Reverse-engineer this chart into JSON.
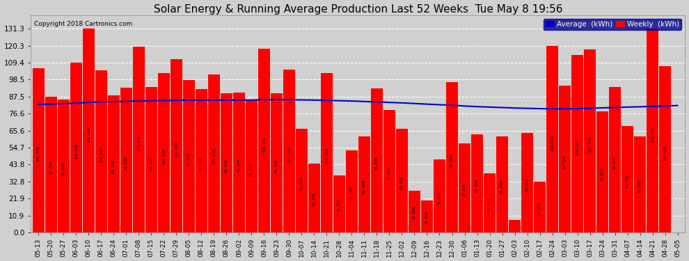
{
  "title": "Solar Energy & Running Average Production Last 52 Weeks  Tue May 8 19:56",
  "copyright": "Copyright 2018 Cartronics.com",
  "background_color": "#d0d0d0",
  "bar_color": "#ff0000",
  "line_color": "#0000cc",
  "yticks": [
    0.0,
    10.9,
    21.9,
    32.8,
    43.8,
    54.7,
    65.6,
    76.6,
    87.5,
    98.5,
    109.4,
    120.3,
    131.3
  ],
  "ylim": [
    0,
    140
  ],
  "categories": [
    "05-13",
    "05-20",
    "05-27",
    "06-03",
    "06-10",
    "06-17",
    "06-24",
    "07-01",
    "07-08",
    "07-15",
    "07-22",
    "07-29",
    "08-05",
    "08-12",
    "08-19",
    "08-26",
    "09-02",
    "09-09",
    "09-16",
    "09-23",
    "09-30",
    "10-07",
    "10-14",
    "10-21",
    "10-28",
    "11-04",
    "11-11",
    "11-18",
    "11-25",
    "12-02",
    "12-09",
    "12-16",
    "12-23",
    "12-30",
    "01-06",
    "01-13",
    "01-20",
    "01-27",
    "02-03",
    "02-10",
    "02-17",
    "02-24",
    "03-03",
    "03-10",
    "03-17",
    "03-24",
    "03-31",
    "04-07",
    "04-14",
    "04-21",
    "04-28",
    "05-05"
  ],
  "bar_heights": [
    105.776,
    87.348,
    85.548,
    109.196,
    131.148,
    104.392,
    88.256,
    93.332,
    119.896,
    93.52,
    102.68,
    111.592,
    98.13,
    92.21,
    101.916,
    89.508,
    90.164,
    85.172,
    118.156,
    89.75,
    104.74,
    66.658,
    44.308,
    102.738,
    36.946,
    53.14,
    61.864,
    93.036,
    78.994,
    66.856,
    26.936,
    20.838,
    46.93,
    96.638,
    57.64,
    63.296,
    37.972,
    61.694,
    7.926,
    64.12,
    32.856,
    120.02,
    94.78,
    114.184,
    117.748,
    78.072,
    93.84,
    68.768,
    62.08,
    131.28,
    107.136,
    0.0
  ],
  "avg_line": [
    82.5,
    82.7,
    83.0,
    83.3,
    83.8,
    84.2,
    84.3,
    84.5,
    84.7,
    84.9,
    85.0,
    85.1,
    85.2,
    85.2,
    85.3,
    85.2,
    85.3,
    85.3,
    85.6,
    85.6,
    85.5,
    85.4,
    85.3,
    85.1,
    84.9,
    84.7,
    84.4,
    84.1,
    83.8,
    83.5,
    83.1,
    82.7,
    82.3,
    82.0,
    81.5,
    81.1,
    80.8,
    80.5,
    80.2,
    80.0,
    79.8,
    79.7,
    79.7,
    79.8,
    80.0,
    80.3,
    80.5,
    80.8,
    81.0,
    81.2,
    81.5,
    81.8
  ],
  "legend_avg_label": "Average  (kWh)",
  "legend_weekly_label": "Weekly  (kWh)",
  "legend_avg_color": "#0000cc",
  "legend_weekly_color": "#ff0000",
  "legend_bg_color": "#00008b",
  "title_fontsize": 11,
  "bar_label_fontsize": 4.0,
  "tick_fontsize": 6.5,
  "ytick_fontsize": 7.5,
  "copyright_fontsize": 6.5,
  "legend_fontsize": 7.5
}
